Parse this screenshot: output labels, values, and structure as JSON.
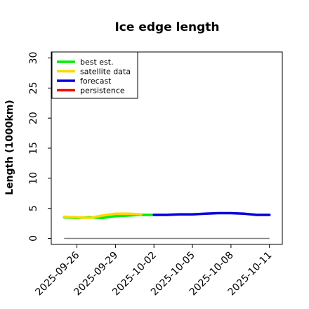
{
  "chart_data": {
    "type": "line",
    "title": "Ice edge length",
    "xlabel": "",
    "ylabel": "Length (1000km)",
    "ylim": [
      -1,
      31
    ],
    "yticks": [
      0,
      5,
      10,
      15,
      20,
      25,
      30
    ],
    "xlim": [
      "2025-09-24",
      "2025-10-12"
    ],
    "xticks": [
      "2025-09-26",
      "2025-09-29",
      "2025-10-02",
      "2025-10-05",
      "2025-10-08",
      "2025-10-11"
    ],
    "highlight_tick": "2025-10-02",
    "highlight_color": "#228B22",
    "legend_position": "top-left",
    "reference_line": {
      "y": 0,
      "color": "#808080"
    },
    "series": [
      {
        "name": "best est.",
        "color": "#00ee00",
        "points": [
          [
            "2025-09-25",
            3.5
          ],
          [
            "2025-09-26",
            3.4
          ],
          [
            "2025-09-27",
            3.5
          ],
          [
            "2025-09-28",
            3.4
          ],
          [
            "2025-09-29",
            3.7
          ],
          [
            "2025-09-30",
            3.8
          ],
          [
            "2025-10-01",
            3.9
          ],
          [
            "2025-10-02",
            3.9
          ]
        ]
      },
      {
        "name": "satellite data",
        "color": "#ffd700",
        "points": [
          [
            "2025-09-25",
            3.6
          ],
          [
            "2025-09-26",
            3.5
          ],
          [
            "2025-09-27",
            3.4
          ],
          [
            "2025-09-28",
            3.8
          ],
          [
            "2025-09-29",
            4.1
          ],
          [
            "2025-09-30",
            4.1
          ],
          [
            "2025-10-01",
            4.0
          ]
        ]
      },
      {
        "name": "forecast",
        "color": "#0000dd",
        "points": [
          [
            "2025-10-02",
            3.9
          ],
          [
            "2025-10-03",
            3.9
          ],
          [
            "2025-10-04",
            4.0
          ],
          [
            "2025-10-05",
            4.0
          ],
          [
            "2025-10-06",
            4.1
          ],
          [
            "2025-10-07",
            4.2
          ],
          [
            "2025-10-08",
            4.2
          ],
          [
            "2025-10-09",
            4.1
          ],
          [
            "2025-10-10",
            3.9
          ],
          [
            "2025-10-11",
            3.9
          ]
        ]
      },
      {
        "name": "persistence",
        "color": "#ff0000",
        "points": []
      }
    ]
  }
}
